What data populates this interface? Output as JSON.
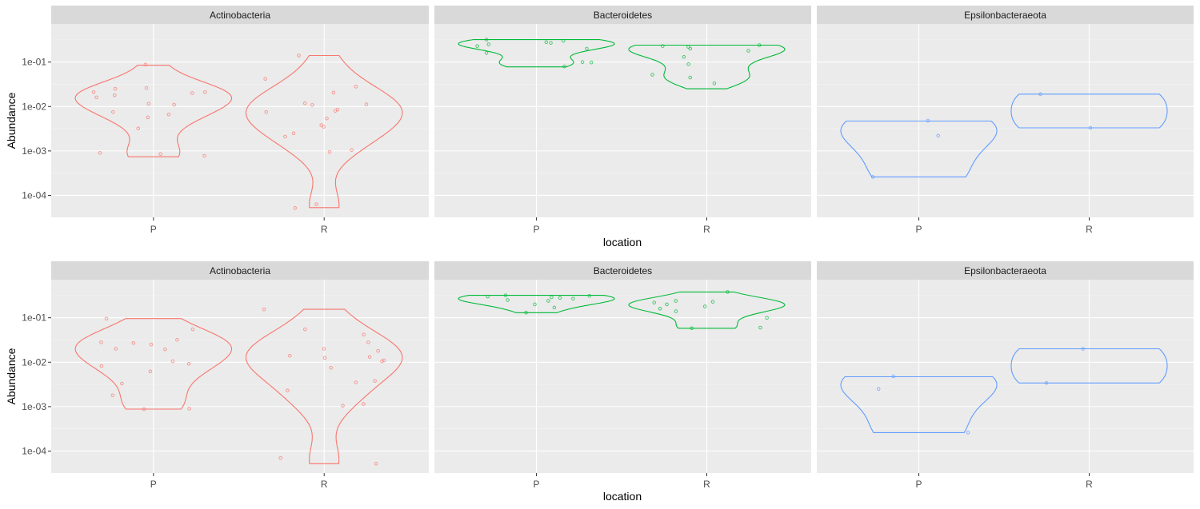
{
  "chart_data": [
    {
      "type": "violin",
      "xlabel": "location",
      "ylabel": "Abundance",
      "y_scale": "log10",
      "ylim": [
        3.2e-05,
        0.72
      ],
      "y_ticks": [
        "1e-04",
        "1e-03",
        "1e-02",
        "1e-01"
      ],
      "grid": true,
      "facets": [
        {
          "name": "Actinobacteria",
          "color": "#F8766D",
          "categories": [
            "P",
            "R"
          ],
          "groups": [
            {
              "x": "P",
              "range": [
                0.00074,
                0.085
              ],
              "points": [
                0.00078,
                0.0009,
                0.00085,
                0.0032,
                0.0057,
                0.0066,
                0.0075,
                0.011,
                0.0115,
                0.016,
                0.018,
                0.02,
                0.021,
                0.025,
                0.026,
                0.021,
                0.088
              ]
            },
            {
              "x": "R",
              "range": [
                5.3e-05,
                0.14
              ],
              "points": [
                5.2e-05,
                6.3e-05,
                0.00095,
                0.00105,
                0.0021,
                0.0025,
                0.0035,
                0.0038,
                0.0054,
                0.0075,
                0.008,
                0.0085,
                0.0108,
                0.0112,
                0.0118,
                0.0205,
                0.028,
                0.042,
                0.14
              ]
            }
          ]
        },
        {
          "name": "Bacteroidetes",
          "color": "#00BA38",
          "categories": [
            "P",
            "R"
          ],
          "groups": [
            {
              "x": "P",
              "range": [
                0.078,
                0.32
              ],
              "points": [
                0.08,
                0.098,
                0.1,
                0.16,
                0.2,
                0.23,
                0.25,
                0.27,
                0.28,
                0.3,
                0.32
              ]
            },
            {
              "x": "R",
              "range": [
                0.025,
                0.24
              ],
              "points": [
                0.033,
                0.045,
                0.052,
                0.09,
                0.13,
                0.18,
                0.2,
                0.22,
                0.23,
                0.24
              ]
            }
          ]
        },
        {
          "name": "Epsilonbacteraeota",
          "color": "#619CFF",
          "categories": [
            "P",
            "R"
          ],
          "groups": [
            {
              "x": "P",
              "range": [
                0.00026,
                0.0047
              ],
              "points": [
                0.00026,
                0.0022,
                0.0048
              ]
            },
            {
              "x": "R",
              "range": [
                0.0033,
                0.019
              ],
              "points": [
                0.0033,
                0.019
              ]
            }
          ]
        }
      ]
    },
    {
      "type": "violin",
      "xlabel": "location",
      "ylabel": "Abundance",
      "y_scale": "log10",
      "ylim": [
        3.2e-05,
        0.72
      ],
      "y_ticks": [
        "1e-04",
        "1e-03",
        "1e-02",
        "1e-01"
      ],
      "grid": true,
      "facets": [
        {
          "name": "Actinobacteria",
          "color": "#F8766D",
          "categories": [
            "P",
            "R"
          ],
          "groups": [
            {
              "x": "P",
              "range": [
                0.00088,
                0.096
              ],
              "points": [
                0.00088,
                0.0009,
                0.0018,
                0.0033,
                0.0062,
                0.0082,
                0.0092,
                0.0105,
                0.0195,
                0.02,
                0.025,
                0.027,
                0.028,
                0.032,
                0.055,
                0.096
              ]
            },
            {
              "x": "R",
              "range": [
                5.2e-05,
                0.155
              ],
              "points": [
                5.2e-05,
                7e-05,
                0.00105,
                0.00115,
                0.0023,
                0.0035,
                0.0038,
                0.0075,
                0.0105,
                0.011,
                0.0125,
                0.0132,
                0.014,
                0.018,
                0.02,
                0.028,
                0.042,
                0.055,
                0.155
              ]
            }
          ]
        },
        {
          "name": "Bacteroidetes",
          "color": "#00BA38",
          "categories": [
            "P",
            "R"
          ],
          "groups": [
            {
              "x": "P",
              "range": [
                0.13,
                0.32
              ],
              "points": [
                0.13,
                0.17,
                0.2,
                0.24,
                0.25,
                0.27,
                0.28,
                0.29,
                0.3,
                0.31,
                0.32
              ]
            },
            {
              "x": "R",
              "range": [
                0.058,
                0.38
              ],
              "points": [
                0.058,
                0.06,
                0.1,
                0.14,
                0.16,
                0.18,
                0.2,
                0.22,
                0.23,
                0.24,
                0.38
              ]
            }
          ]
        },
        {
          "name": "Epsilonbacteraeota",
          "color": "#619CFF",
          "categories": [
            "P",
            "R"
          ],
          "groups": [
            {
              "x": "P",
              "range": [
                0.00026,
                0.0047
              ],
              "points": [
                0.00026,
                0.0025,
                0.0048
              ]
            },
            {
              "x": "R",
              "range": [
                0.0034,
                0.02
              ],
              "points": [
                0.0034,
                0.02
              ]
            }
          ]
        }
      ]
    }
  ]
}
